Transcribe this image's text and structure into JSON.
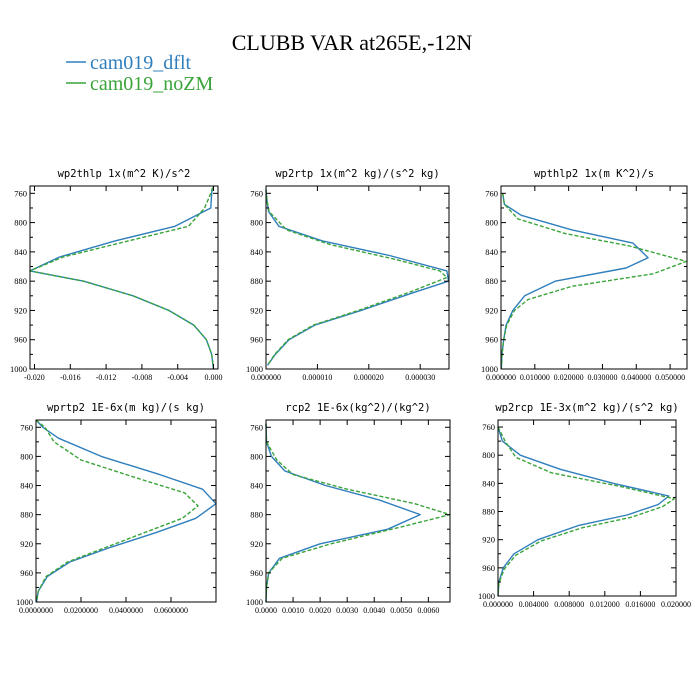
{
  "figure": {
    "title": "CLUBB VAR at265E,-12N"
  },
  "legend": [
    {
      "label": "cam019_dflt",
      "color": "#2f7fbd",
      "dash": "solid"
    },
    {
      "label": "cam019_noZM",
      "color": "#3aa43a",
      "dash": "dashed"
    }
  ],
  "chart_data": [
    {
      "type": "line",
      "title": "wp2thlp  1x(m^2 K)/s^2",
      "ylim": [
        1000,
        750
      ],
      "yticks": [
        760,
        800,
        840,
        880,
        920,
        960,
        1000
      ],
      "xlim": [
        -0.0205,
        0.0005
      ],
      "xticks": [
        -0.02,
        -0.016,
        -0.012,
        -0.008,
        -0.004,
        0.0
      ],
      "xtick_labels": [
        "-0.020",
        "-0.016",
        "-0.012",
        "-0.008",
        "-0.004",
        "0.000"
      ],
      "series": [
        {
          "name": "cam019_dflt",
          "y": [
            752,
            760,
            780,
            805,
            825,
            847,
            866,
            880,
            900,
            920,
            940,
            960,
            980,
            1000
          ],
          "x": [
            -0.0001,
            -0.0002,
            -0.0003,
            -0.0043,
            -0.011,
            -0.0172,
            -0.0207,
            -0.0145,
            -0.009,
            -0.005,
            -0.0022,
            -0.0008,
            -0.0002,
            0.0
          ]
        },
        {
          "name": "cam019_noZM",
          "y": [
            752,
            760,
            780,
            805,
            825,
            847,
            866,
            880,
            900,
            920,
            940,
            960,
            980,
            1000
          ],
          "x": [
            -0.0001,
            -0.0003,
            -0.001,
            -0.0028,
            -0.0095,
            -0.0168,
            -0.0207,
            -0.0145,
            -0.009,
            -0.005,
            -0.0022,
            -0.0008,
            -0.0002,
            0.0
          ]
        }
      ]
    },
    {
      "type": "line",
      "title": "wp2rtp  1x(m^2 kg)/(s^2 kg)",
      "ylim": [
        1000,
        750
      ],
      "yticks": [
        760,
        800,
        840,
        880,
        920,
        960,
        1000
      ],
      "xlim": [
        0.0,
        3.56e-05
      ],
      "xticks": [
        0.0,
        1e-05,
        2e-05,
        3e-05
      ],
      "xtick_labels": [
        "0.000000",
        "0.000010",
        "0.000020",
        "0.000030"
      ],
      "series": [
        {
          "name": "cam019_dflt",
          "y": [
            755,
            770,
            785,
            805,
            825,
            845,
            866,
            880,
            895,
            920,
            940,
            960,
            980,
            995
          ],
          "x": [
            0.0,
            2e-07,
            5e-07,
            2.5e-06,
            1.1e-05,
            2.4e-05,
            3.52e-05,
            3.55e-05,
            2.9e-05,
            1.85e-05,
            9.5e-06,
            4.5e-06,
            1.8e-06,
            3e-07
          ]
        },
        {
          "name": "cam019_noZM",
          "y": [
            755,
            770,
            785,
            810,
            830,
            850,
            866,
            875,
            895,
            920,
            940,
            960,
            980,
            995
          ],
          "x": [
            0.0,
            2e-07,
            6e-07,
            4e-06,
            1.25e-05,
            2.5e-05,
            3.38e-05,
            3.52e-05,
            2.8e-05,
            1.8e-05,
            9.2e-06,
            4.3e-06,
            1.7e-06,
            3e-07
          ]
        }
      ]
    },
    {
      "type": "line",
      "title": "wpthlp2  1x(m K^2)/s",
      "ylim": [
        1000,
        750
      ],
      "yticks": [
        760,
        800,
        840,
        880,
        920,
        960,
        1000
      ],
      "xlim": [
        0.0,
        0.055
      ],
      "xticks": [
        0.0,
        0.01,
        0.02,
        0.03,
        0.04,
        0.05
      ],
      "xtick_labels": [
        "0.000000",
        "0.010000",
        "0.020000",
        "0.030000",
        "0.040000",
        "0.050000"
      ],
      "series": [
        {
          "name": "cam019_dflt",
          "y": [
            760,
            775,
            790,
            810,
            828,
            848,
            862,
            880,
            900,
            920,
            940,
            960,
            980,
            1000
          ],
          "x": [
            0.0005,
            0.001,
            0.006,
            0.021,
            0.039,
            0.0435,
            0.037,
            0.016,
            0.007,
            0.0035,
            0.0015,
            0.0008,
            0.0003,
            0.0001
          ]
        },
        {
          "name": "cam019_noZM",
          "y": [
            760,
            775,
            795,
            815,
            832,
            853,
            870,
            887,
            905,
            920,
            940,
            960,
            980,
            1000
          ],
          "x": [
            0.0005,
            0.001,
            0.005,
            0.019,
            0.038,
            0.0548,
            0.045,
            0.021,
            0.008,
            0.004,
            0.0017,
            0.0008,
            0.0003,
            0.0001
          ]
        }
      ]
    },
    {
      "type": "line",
      "title": "wprtp2  1E-6x(m kg)/(s kg)",
      "ylim": [
        1000,
        750
      ],
      "yticks": [
        760,
        800,
        840,
        880,
        920,
        960,
        1000
      ],
      "xlim": [
        0.0,
        0.08
      ],
      "xticks": [
        0.0,
        0.02,
        0.04,
        0.06
      ],
      "xtick_labels": [
        "0.0000000",
        "0.0200000",
        "0.0400000",
        "0.0600000"
      ],
      "series": [
        {
          "name": "cam019_dflt",
          "y": [
            750,
            760,
            775,
            800,
            825,
            845,
            865,
            885,
            905,
            925,
            945,
            965,
            985,
            1000
          ],
          "x": [
            0.0,
            0.003,
            0.01,
            0.029,
            0.055,
            0.074,
            0.08,
            0.071,
            0.053,
            0.033,
            0.015,
            0.005,
            0.001,
            0.0002
          ]
        },
        {
          "name": "cam019_noZM",
          "y": [
            750,
            760,
            780,
            805,
            830,
            850,
            868,
            885,
            905,
            925,
            945,
            965,
            985,
            1000
          ],
          "x": [
            0.0,
            0.004,
            0.008,
            0.02,
            0.045,
            0.066,
            0.072,
            0.065,
            0.048,
            0.031,
            0.014,
            0.0045,
            0.001,
            0.0002
          ]
        }
      ]
    },
    {
      "type": "line",
      "title": "rcp2  1E-6x(kg^2)/(kg^2)",
      "ylim": [
        1000,
        750
      ],
      "yticks": [
        760,
        800,
        840,
        880,
        920,
        960,
        1000
      ],
      "xlim": [
        0.0,
        0.0068
      ],
      "xticks": [
        0.0,
        0.001,
        0.002,
        0.003,
        0.004,
        0.005,
        0.006
      ],
      "xtick_labels": [
        "0.0000",
        "0.0010",
        "0.0020",
        "0.0030",
        "0.0040",
        "0.0050",
        "0.0060"
      ],
      "series": [
        {
          "name": "cam019_dflt",
          "y": [
            755,
            780,
            800,
            820,
            840,
            860,
            880,
            900,
            920,
            940,
            960,
            980,
            1000
          ],
          "x": [
            0.0,
            2e-05,
            0.0002,
            0.0007,
            0.0022,
            0.0042,
            0.0057,
            0.0045,
            0.002,
            0.0005,
            0.0001,
            2e-05,
            0.0
          ],
          "xtrim": [
            0,
            0,
            0,
            0,
            0,
            0,
            0,
            0,
            0,
            0,
            0,
            0,
            0
          ]
        },
        {
          "name": "cam019_noZM",
          "y": [
            755,
            780,
            805,
            825,
            845,
            865,
            880,
            895,
            920,
            940,
            960,
            980,
            1000
          ],
          "x": [
            0.0,
            2e-05,
            0.0004,
            0.001,
            0.003,
            0.0055,
            0.0068,
            0.0052,
            0.0024,
            0.0006,
            0.0001,
            2e-05,
            0.0
          ]
        }
      ]
    },
    {
      "type": "line",
      "title": "wp2rcp  1E-3x(m^2 kg)/(s^2 kg)",
      "ylim": [
        1000,
        750
      ],
      "yticks": [
        760,
        800,
        840,
        880,
        920,
        960,
        1000
      ],
      "xlim": [
        0.0,
        0.02
      ],
      "xticks": [
        0.0,
        0.004,
        0.008,
        0.012,
        0.016,
        0.02
      ],
      "xtick_labels": [
        "0.000000",
        "0.004000",
        "0.008000",
        "0.012000",
        "0.016000",
        "0.020000"
      ],
      "series": [
        {
          "name": "cam019_dflt",
          "y": [
            760,
            780,
            800,
            820,
            840,
            858,
            870,
            885,
            900,
            920,
            940,
            960,
            980,
            1000
          ],
          "x": [
            0.0,
            0.0005,
            0.0025,
            0.007,
            0.013,
            0.0192,
            0.018,
            0.0145,
            0.009,
            0.0045,
            0.0018,
            0.0006,
            0.0001,
            0.0
          ]
        },
        {
          "name": "cam019_noZM",
          "y": [
            760,
            780,
            803,
            825,
            845,
            862,
            873,
            888,
            903,
            922,
            942,
            962,
            982,
            1000
          ],
          "x": [
            0.0,
            0.0008,
            0.002,
            0.006,
            0.014,
            0.0198,
            0.0185,
            0.015,
            0.0095,
            0.0048,
            0.002,
            0.0007,
            0.0001,
            0.0
          ]
        }
      ]
    }
  ]
}
